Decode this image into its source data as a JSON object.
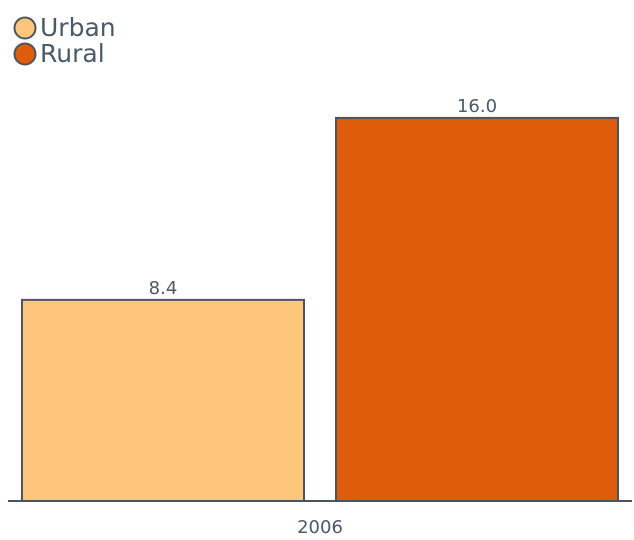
{
  "chart_data": {
    "type": "bar",
    "categories": [
      "2006"
    ],
    "series": [
      {
        "name": "Urban",
        "color": "#fdc67a",
        "values": [
          8.4
        ],
        "value_labels": [
          "8.4"
        ]
      },
      {
        "name": "Rural",
        "color": "#de5c0a",
        "values": [
          16.0
        ],
        "value_labels": [
          "16.0"
        ]
      }
    ],
    "ylim": [
      0,
      17.5
    ],
    "legend": "top-left"
  }
}
